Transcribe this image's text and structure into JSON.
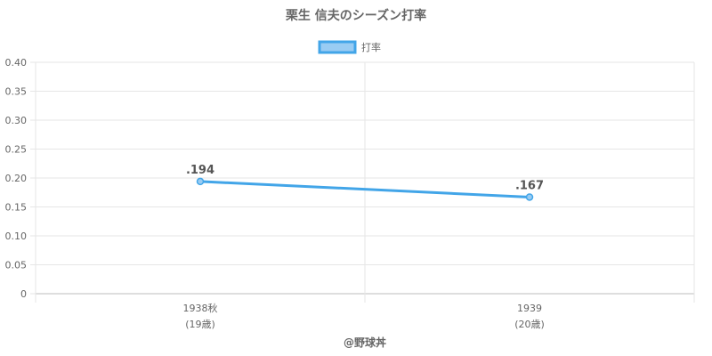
{
  "chart_data": {
    "type": "line",
    "title": "栗生 信夫のシーズン打率",
    "categories": [
      "1938秋",
      "1939"
    ],
    "category_sublabels": [
      "(19歳)",
      "(20歳)"
    ],
    "series": [
      {
        "name": "打率",
        "values": [
          0.194,
          0.167
        ],
        "data_labels": [
          ".194",
          ".167"
        ],
        "color": "#42a5e8",
        "fill": "#99ccf3"
      }
    ],
    "yticks": [
      "0",
      "0.05",
      "0.10",
      "0.15",
      "0.20",
      "0.25",
      "0.30",
      "0.35",
      "0.40"
    ],
    "ylim": [
      0,
      0.4
    ],
    "legend_position": "top-center",
    "grid": true
  },
  "credit": "@野球丼"
}
